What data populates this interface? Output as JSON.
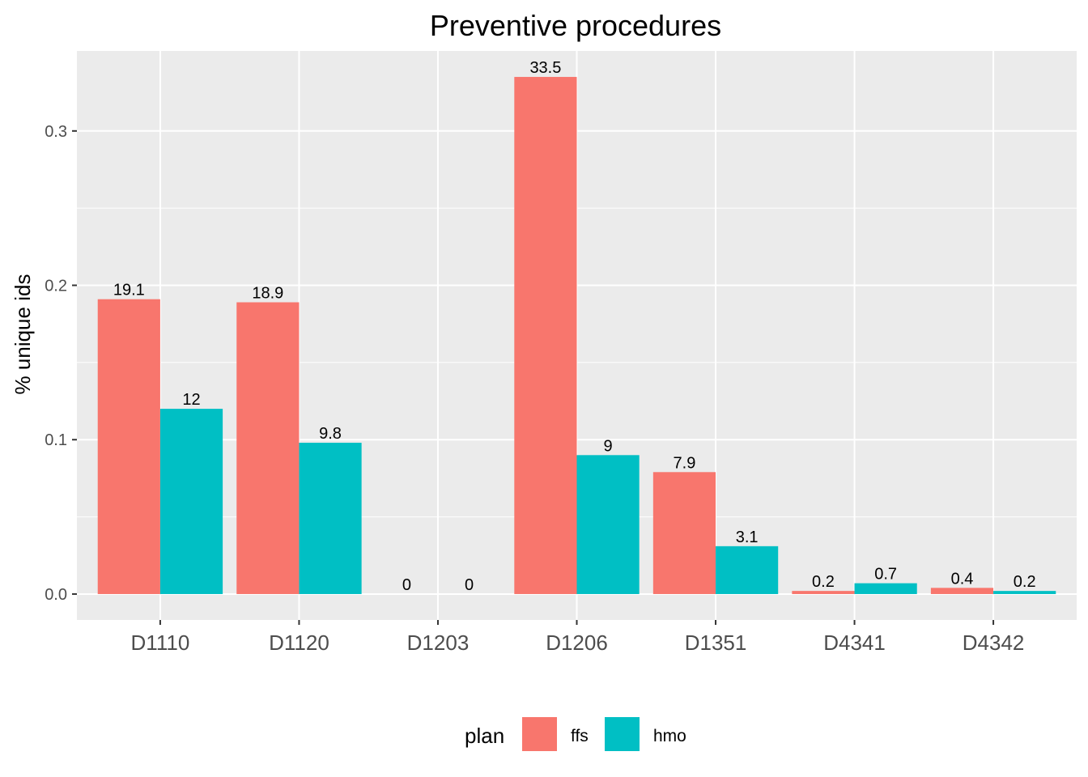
{
  "chart_data": {
    "type": "bar",
    "title": "Preventive procedures",
    "xlabel": "",
    "ylabel": "% unique ids",
    "categories": [
      "D1110",
      "D1120",
      "D1203",
      "D1206",
      "D1351",
      "D4341",
      "D4342"
    ],
    "series": [
      {
        "name": "ffs",
        "color": "#F8766D",
        "values": [
          0.191,
          0.189,
          0,
          0.335,
          0.079,
          0.002,
          0.004
        ],
        "labels": [
          "19.1",
          "18.9",
          "0",
          "33.5",
          "7.9",
          "0.2",
          "0.4"
        ]
      },
      {
        "name": "hmo",
        "color": "#00BFC4",
        "values": [
          0.12,
          0.098,
          0,
          0.09,
          0.031,
          0.007,
          0.002
        ],
        "labels": [
          "12",
          "9.8",
          "0",
          "9",
          "3.1",
          "0.7",
          "0.2"
        ]
      }
    ],
    "ylim": [
      -0.0168,
      0.3518
    ],
    "yticks": [
      "0.0",
      "0.1",
      "0.2",
      "0.3"
    ],
    "grid": true,
    "panel_background": "#EBEBEB",
    "grid_color": "#FFFFFF",
    "legend_title": "plan",
    "legend_position": "bottom"
  }
}
